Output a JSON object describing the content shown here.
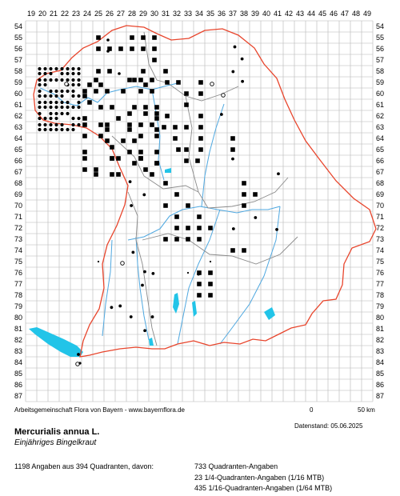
{
  "grid": {
    "top_cols": [
      "19",
      "20",
      "21",
      "22",
      "23",
      "24",
      "25",
      "26",
      "27",
      "28",
      "29",
      "30",
      "31",
      "32",
      "33",
      "34",
      "35",
      "36",
      "37",
      "38",
      "39",
      "40",
      "41",
      "42",
      "43",
      "44",
      "45",
      "46",
      "47",
      "48",
      "49"
    ],
    "side_rows": [
      "54",
      "55",
      "56",
      "57",
      "58",
      "59",
      "60",
      "61",
      "62",
      "63",
      "64",
      "65",
      "66",
      "67",
      "68",
      "69",
      "70",
      "71",
      "72",
      "73",
      "74",
      "75",
      "76",
      "77",
      "78",
      "79",
      "80",
      "81",
      "82",
      "83",
      "84",
      "85",
      "86",
      "87"
    ]
  },
  "colors": {
    "grid_line": "#b5b5b5",
    "state_border": "#e8452c",
    "district_border": "#8a8a8a",
    "rivers": "#4fa8e0",
    "lakes": "#22c4e8",
    "markers": "#000000"
  },
  "legend": {
    "marker_types": [
      "square",
      "dot",
      "small-dot",
      "open-circle"
    ],
    "scale_start": "0",
    "scale_end": "50 km"
  },
  "footer": {
    "credit": "Arbeitsgemeinschaft Flora von Bayern - www.bayernflora.de",
    "date": "Datenstand: 05.06.2025",
    "species_name": "Mercurialis annua L.",
    "german_name": "Einjähriges Bingelkraut",
    "summary": "1198 Angaben aus 394 Quadranten, davon:",
    "stat_1": "733 Quadranten-Angaben",
    "stat_2": "23 1/4-Quadranten-Angaben (1/16 MTB)",
    "stat_3": "435 1/16-Quadranten-Angaben (1/64 MTB)"
  }
}
